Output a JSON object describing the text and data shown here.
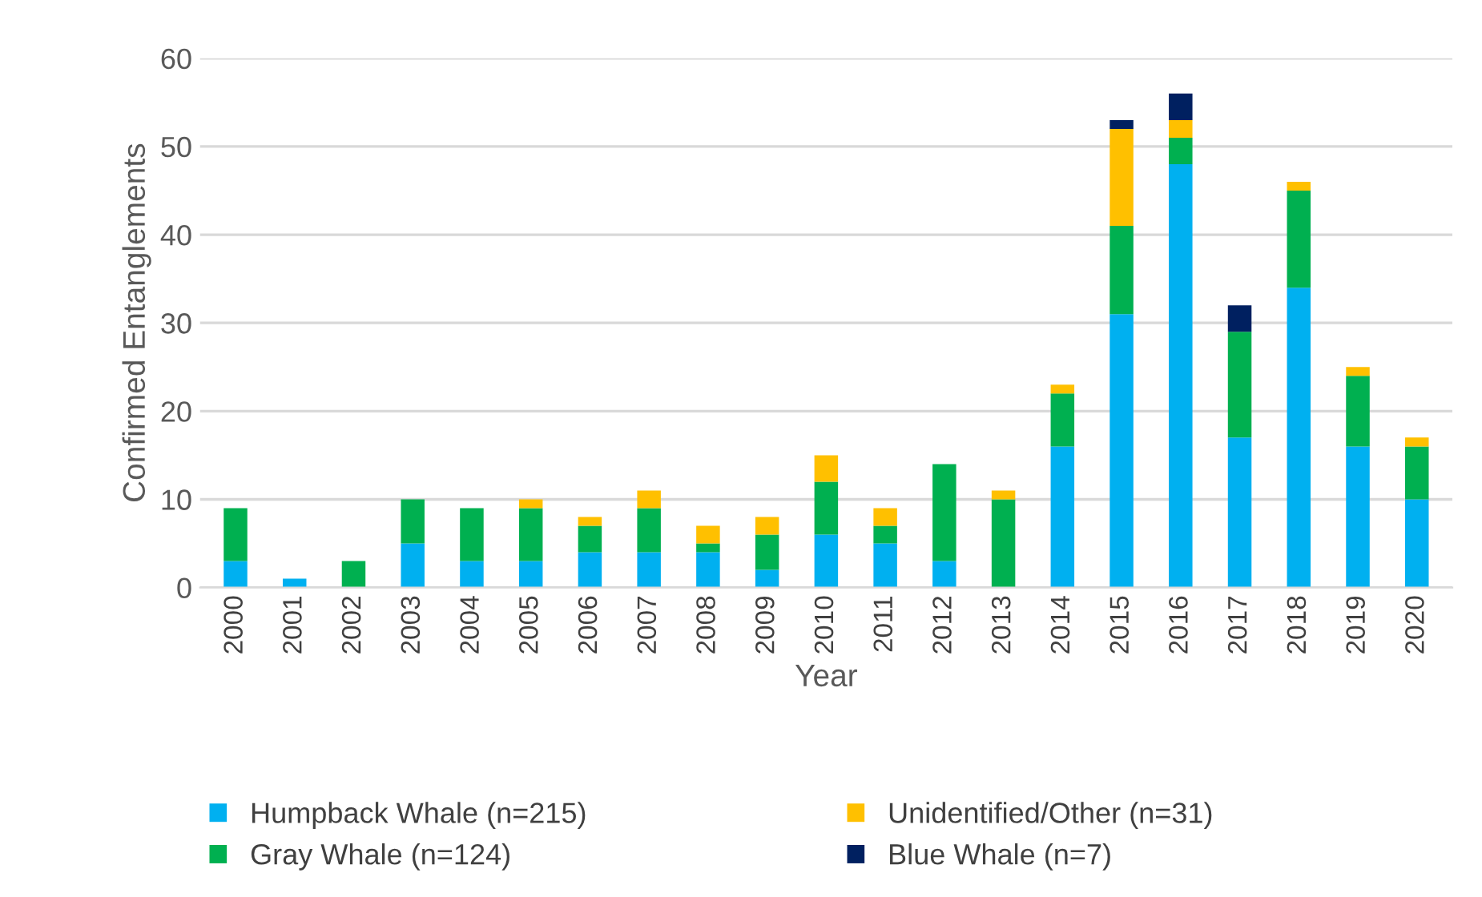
{
  "chart_data": {
    "type": "bar",
    "stacked": true,
    "xlabel": "Year",
    "ylabel": "Confirmed Entanglements",
    "categories": [
      "2000",
      "2001",
      "2002",
      "2003",
      "2004",
      "2005",
      "2006",
      "2007",
      "2008",
      "2009",
      "2010",
      "2011",
      "2012",
      "2013",
      "2014",
      "2015",
      "2016",
      "2017",
      "2018",
      "2019",
      "2020"
    ],
    "series": [
      {
        "name": "Humpback Whale (n=215)",
        "color": "#00b0f0",
        "values": [
          3,
          1,
          0,
          5,
          3,
          3,
          4,
          4,
          4,
          2,
          6,
          5,
          3,
          0,
          16,
          31,
          48,
          17,
          34,
          16,
          10
        ]
      },
      {
        "name": "Gray Whale (n=124)",
        "color": "#00b050",
        "values": [
          6,
          0,
          3,
          5,
          6,
          6,
          3,
          5,
          1,
          4,
          6,
          2,
          11,
          10,
          6,
          10,
          3,
          12,
          11,
          8,
          6
        ]
      },
      {
        "name": "Unidentified/Other (n=31)",
        "color": "#ffc000",
        "values": [
          0,
          0,
          0,
          0,
          0,
          1,
          1,
          2,
          2,
          2,
          3,
          2,
          0,
          1,
          1,
          11,
          2,
          0,
          1,
          1,
          1
        ]
      },
      {
        "name": "Blue Whale (n=7)",
        "color": "#002060",
        "values": [
          0,
          0,
          0,
          0,
          0,
          0,
          0,
          0,
          0,
          0,
          0,
          0,
          0,
          0,
          0,
          1,
          3,
          3,
          0,
          0,
          0
        ]
      }
    ],
    "ylim": [
      0,
      60
    ],
    "yticks": [
      0,
      10,
      20,
      30,
      40,
      50,
      60
    ],
    "grid": "y",
    "legend": "bottom"
  }
}
